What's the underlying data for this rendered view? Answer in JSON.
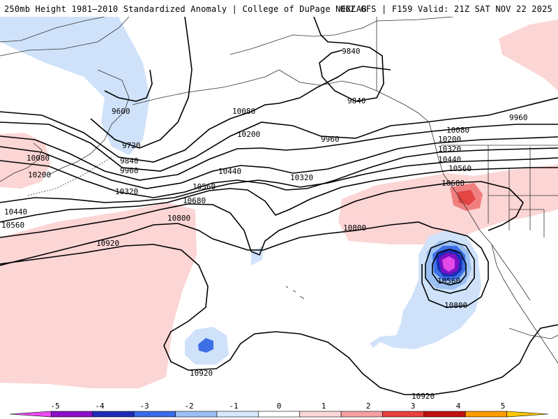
{
  "header": {
    "title_left": "250mb Height 1981–2010 Standardized Anomaly | College of DuPage NEXLAB",
    "title_right": "06Z GFS | F159 Valid: 21Z SAT NOV 22 2025"
  },
  "contour_labels": {
    "c9600": "9600",
    "c9720": "9720",
    "c9840_w": "9840",
    "c9840_n": "9840",
    "c9840_e": "9840",
    "c9960_w": "9960",
    "c9960_m": "9960",
    "c9960_e": "9960",
    "c10080_w": "10080",
    "c10080_m": "10080",
    "c10080_e": "10080",
    "c10200_w": "10200",
    "c10200_m": "10200",
    "c10200_e": "10200",
    "c10320_w": "10320",
    "c10320_m": "10320",
    "c10320_e": "10320",
    "c10440_w": "10440",
    "c10440_m": "10440",
    "c10440_e": "10440",
    "c10560_w": "10560",
    "c10560_m": "10560",
    "c10560_e": "10560",
    "c10560_low": "10560",
    "c10680_m": "10680",
    "c10680_e": "10680",
    "c10800_w": "10800",
    "c10800_m": "10800",
    "c10800_low": "10800",
    "c10920_w": "10920",
    "c10920_s": "10920",
    "c10920_se": "10920"
  },
  "colorbar": {
    "labels": [
      "-5",
      "-4",
      "-3",
      "-2",
      "-1",
      "0",
      "1",
      "2",
      "3",
      "4",
      "5"
    ],
    "colors": [
      "#e84cf0",
      "#8a10c8",
      "#1c2cb8",
      "#3a6ae8",
      "#9cc0f4",
      "#d8e8fc",
      "#ffffff",
      "#fcd8d8",
      "#f4a0a0",
      "#e84040",
      "#c01010",
      "#ff9c00",
      "#ffc800"
    ]
  },
  "colors": {
    "neg1": "#cfe2fa",
    "neg2": "#9dc0f2",
    "neg3": "#3d6fe6",
    "neg4": "#1b2db6",
    "neg5": "#7b10c4",
    "neg6": "#e34ae8",
    "pos1": "#fcd5d5",
    "pos2": "#f08080",
    "pos3": "#e44444"
  }
}
